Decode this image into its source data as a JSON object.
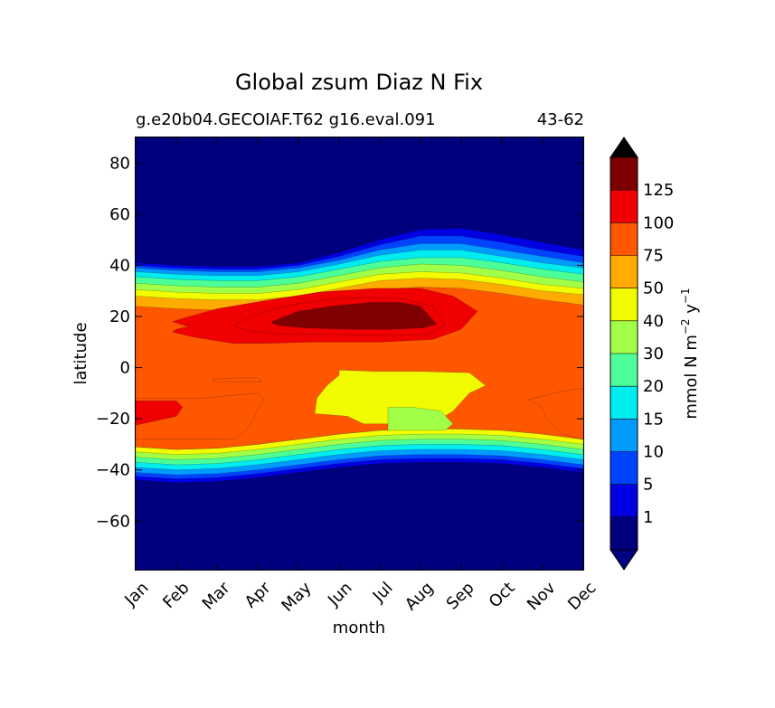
{
  "chart_data": {
    "type": "contour",
    "title": "Global zsum Diaz N Fix",
    "subtitle_left": "g.e20b04.GECOIAF.T62 g16.eval.091",
    "subtitle_right": "43-62",
    "xlabel": "month",
    "ylabel": "latitude",
    "x_ticks": [
      "Jan",
      "Feb",
      "Mar",
      "Apr",
      "May",
      "Jun",
      "Jul",
      "Aug",
      "Sep",
      "Oct",
      "Nov",
      "Dec"
    ],
    "y_ticks": [
      -60,
      -40,
      -20,
      0,
      20,
      40,
      60,
      80
    ],
    "y_tick_labels": [
      "−60",
      "−40",
      "−20",
      "0",
      "20",
      "40",
      "60",
      "80"
    ],
    "xlim": [
      0,
      11
    ],
    "ylim": [
      -79,
      90
    ],
    "colorbar": {
      "label_base": "mmol N m",
      "label_exp1": "−2",
      "label_mid": " y",
      "label_exp2": "−1",
      "levels": [
        1,
        5,
        10,
        15,
        20,
        30,
        40,
        50,
        75,
        100,
        125
      ],
      "tick_labels": [
        "1",
        "5",
        "10",
        "15",
        "20",
        "30",
        "40",
        "50",
        "75",
        "100",
        "125"
      ],
      "colors": [
        "#00007f",
        "#0000e3",
        "#0043ff",
        "#009bff",
        "#00ecef",
        "#4dff97",
        "#a1ff48",
        "#f2fc00",
        "#ffab00",
        "#ff5700",
        "#f00000",
        "#7f0000"
      ],
      "extend": "both",
      "under_color": "#000080",
      "over_color": "#000000"
    },
    "upper_boundaries_by_month": [
      [
        41,
        40,
        39.5,
        39.5,
        41,
        45,
        50,
        54,
        54.5,
        52,
        49,
        46
      ],
      [
        40,
        39,
        38.5,
        38.5,
        40,
        43.5,
        48,
        51.5,
        51.5,
        49,
        46,
        43.5
      ],
      [
        39,
        38,
        37.5,
        37.5,
        39,
        42,
        46,
        48.5,
        48.5,
        46,
        43.5,
        41
      ],
      [
        37.5,
        36.5,
        36,
        36,
        37.5,
        40.5,
        44,
        46,
        46,
        43.5,
        41,
        39
      ],
      [
        35.5,
        34.5,
        34,
        34,
        35.5,
        38.5,
        41.5,
        43,
        43,
        41,
        38.5,
        36.5
      ],
      [
        33,
        32,
        31.5,
        31.5,
        33,
        36,
        39,
        40.5,
        40,
        38,
        35.5,
        33.5
      ],
      [
        30.5,
        29.5,
        29,
        29,
        30.5,
        33.5,
        36.5,
        37.5,
        37,
        35,
        32.5,
        31
      ],
      [
        28,
        27,
        26.5,
        26.5,
        28,
        31,
        34,
        35,
        34.5,
        32.5,
        30,
        28.5
      ],
      [
        24,
        23,
        22.5,
        22.5,
        24,
        27.5,
        30.5,
        31.5,
        31,
        29,
        26.5,
        24.5
      ]
    ],
    "lower_boundaries_by_month": [
      [
        -44,
        -45,
        -44.5,
        -43,
        -41,
        -39,
        -37.5,
        -37,
        -37,
        -37.5,
        -39,
        -41
      ],
      [
        -42.5,
        -43.5,
        -43,
        -41.5,
        -39.5,
        -37.5,
        -36,
        -35.5,
        -35.5,
        -36,
        -37.5,
        -39.5
      ],
      [
        -41,
        -42,
        -41.5,
        -40,
        -38,
        -36,
        -34.5,
        -34,
        -34,
        -34.5,
        -36,
        -38
      ],
      [
        -39,
        -40,
        -39.5,
        -38,
        -36,
        -34,
        -32.5,
        -32,
        -32,
        -32.5,
        -34,
        -36
      ],
      [
        -37,
        -38,
        -37.5,
        -36,
        -34,
        -32,
        -30.5,
        -30,
        -30,
        -30.5,
        -32,
        -34
      ],
      [
        -35,
        -36,
        -35.5,
        -34,
        -32,
        -30,
        -28.5,
        -28,
        -28,
        -28.5,
        -30,
        -32
      ],
      [
        -33,
        -34,
        -33.5,
        -32,
        -30,
        -28,
        -26.5,
        -26,
        -26,
        -26.5,
        -28,
        -30
      ],
      [
        -31,
        -32,
        -31.5,
        -30,
        -28,
        -26,
        -24.5,
        -24,
        -24,
        -24.5,
        -26,
        -28
      ]
    ],
    "patches": [
      {
        "level": 100,
        "x": [
          0.9,
          2.0,
          3.3,
          4.5,
          5.9,
          7.0,
          7.8,
          8.4,
          8.0,
          7.3,
          6.0,
          4.3,
          3.2,
          2.4,
          1.4,
          0.9,
          1.0,
          1.3
        ],
        "y": [
          18,
          23,
          26.5,
          29.5,
          31,
          31,
          28,
          22,
          15,
          11,
          10,
          10,
          9.5,
          9.5,
          12,
          14,
          15,
          16
        ]
      },
      {
        "level": 100,
        "x": [
          2.45,
          3.0,
          3.8,
          4.7,
          5.6,
          6.5,
          7.3,
          7.6,
          7.2,
          6.2,
          5.0,
          3.7,
          2.7,
          2.45
        ],
        "y": [
          17,
          21,
          24.5,
          26.5,
          27.5,
          27,
          24,
          17,
          13,
          12.5,
          13,
          13,
          14.5,
          16
        ]
      },
      {
        "level": 125,
        "x": [
          3.35,
          4.0,
          4.8,
          5.8,
          6.5,
          7.0,
          7.4,
          7.05,
          6.3,
          5.2,
          4.2,
          3.5,
          3.35
        ],
        "y": [
          18,
          22,
          24,
          25.5,
          25.5,
          24,
          17,
          15.5,
          15,
          15,
          15.5,
          16.5,
          17.5
        ]
      },
      {
        "level": 40,
        "x": [
          5.0,
          5.1,
          5.9,
          7.0,
          8.2,
          8.6,
          8.2,
          7.8,
          7.2,
          6.4,
          5.6,
          5.2,
          4.4,
          4.45,
          4.7,
          5.0
        ],
        "y": [
          -1,
          -1,
          -1.5,
          -1.5,
          -2,
          -7,
          -10,
          -17,
          -23,
          -22,
          -22,
          -19,
          -18,
          -12,
          -7,
          -3
        ]
      },
      {
        "level": 30,
        "x": [
          6.2,
          6.8,
          7.5,
          7.8,
          7.6,
          6.2
        ],
        "y": [
          -15.5,
          -15.5,
          -17,
          -22,
          -24.5,
          -24.5
        ]
      },
      {
        "level": 75,
        "x": [
          0.0,
          1.6,
          3.0,
          3.15,
          2.95,
          2.8,
          2.45,
          1.9,
          0.0
        ],
        "y": [
          -12,
          -12,
          -10,
          -12,
          -18,
          -23,
          -28,
          -28,
          -28
        ]
      },
      {
        "level": 100,
        "x": [
          0.0,
          1.0,
          1.15,
          1.0,
          0.0
        ],
        "y": [
          -13,
          -13,
          -15.5,
          -19,
          -22.5
        ]
      },
      {
        "level": 75,
        "x": [
          9.65,
          10.4,
          11,
          11,
          10.5,
          10.1,
          9.95
        ],
        "y": [
          -12.5,
          -9.5,
          -8,
          -28,
          -26,
          -20,
          -15
        ]
      },
      {
        "level": 75,
        "x": [
          1.9,
          2.5,
          3.0,
          3.1,
          2.4,
          1.9
        ],
        "y": [
          -4.5,
          -4,
          -4,
          -5.5,
          -5.5,
          -5.5
        ]
      }
    ]
  }
}
